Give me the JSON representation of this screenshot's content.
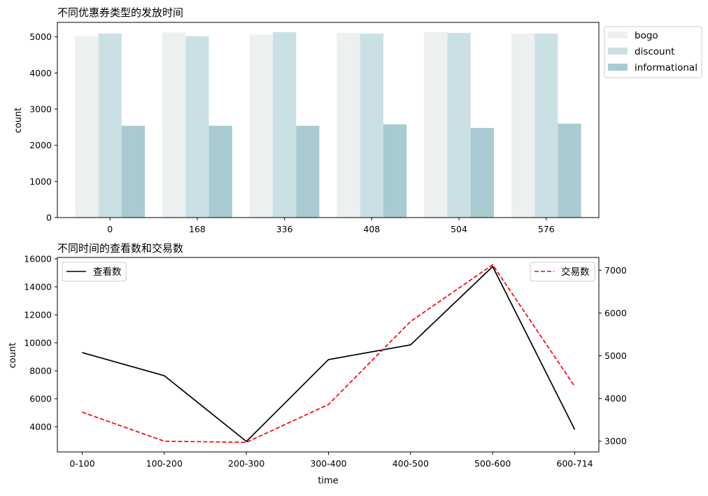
{
  "chart_data": [
    {
      "type": "bar",
      "title": "不同优惠券类型的发放时间",
      "xlabel": "",
      "ylabel": "count",
      "ylim": [
        0,
        5400
      ],
      "yticks": [
        0,
        1000,
        2000,
        3000,
        4000,
        5000
      ],
      "categories": [
        "0",
        "168",
        "336",
        "408",
        "504",
        "576"
      ],
      "legend_position": "upper right, outside plot",
      "series": [
        {
          "name": "bogo",
          "color": "#ecf0f1",
          "values": [
            5020,
            5120,
            5060,
            5110,
            5130,
            5090
          ]
        },
        {
          "name": "discount",
          "color": "#cbe0e4",
          "values": [
            5090,
            5020,
            5130,
            5090,
            5110,
            5090
          ]
        },
        {
          "name": "informational",
          "color": "#a8cbd2",
          "values": [
            2540,
            2540,
            2540,
            2580,
            2480,
            2600
          ]
        }
      ]
    },
    {
      "type": "line",
      "title": "不同时间的查看数和交易数",
      "xlabel": "time",
      "ylabel": "count",
      "categories": [
        "0-100",
        "100-200",
        "200-300",
        "300-400",
        "400-500",
        "500-600",
        "600-714"
      ],
      "left_axis": {
        "ylim": [
          2200,
          16100
        ],
        "ticks": [
          4000,
          6000,
          8000,
          10000,
          12000,
          14000,
          16000
        ]
      },
      "right_axis": {
        "ylim": [
          2750,
          7300
        ],
        "ticks": [
          3000,
          4000,
          5000,
          6000,
          7000
        ]
      },
      "series": [
        {
          "name": "查看数",
          "axis": "left",
          "color": "#000000",
          "style": "solid",
          "legend_position": "upper left",
          "values": [
            9300,
            7650,
            2950,
            8800,
            9850,
            15450,
            3800
          ]
        },
        {
          "name": "交易数",
          "axis": "right",
          "color": "#ff0000",
          "style": "dashed",
          "legend_position": "upper right",
          "values": [
            3680,
            3000,
            2975,
            3860,
            5800,
            7130,
            4280
          ]
        }
      ]
    }
  ]
}
